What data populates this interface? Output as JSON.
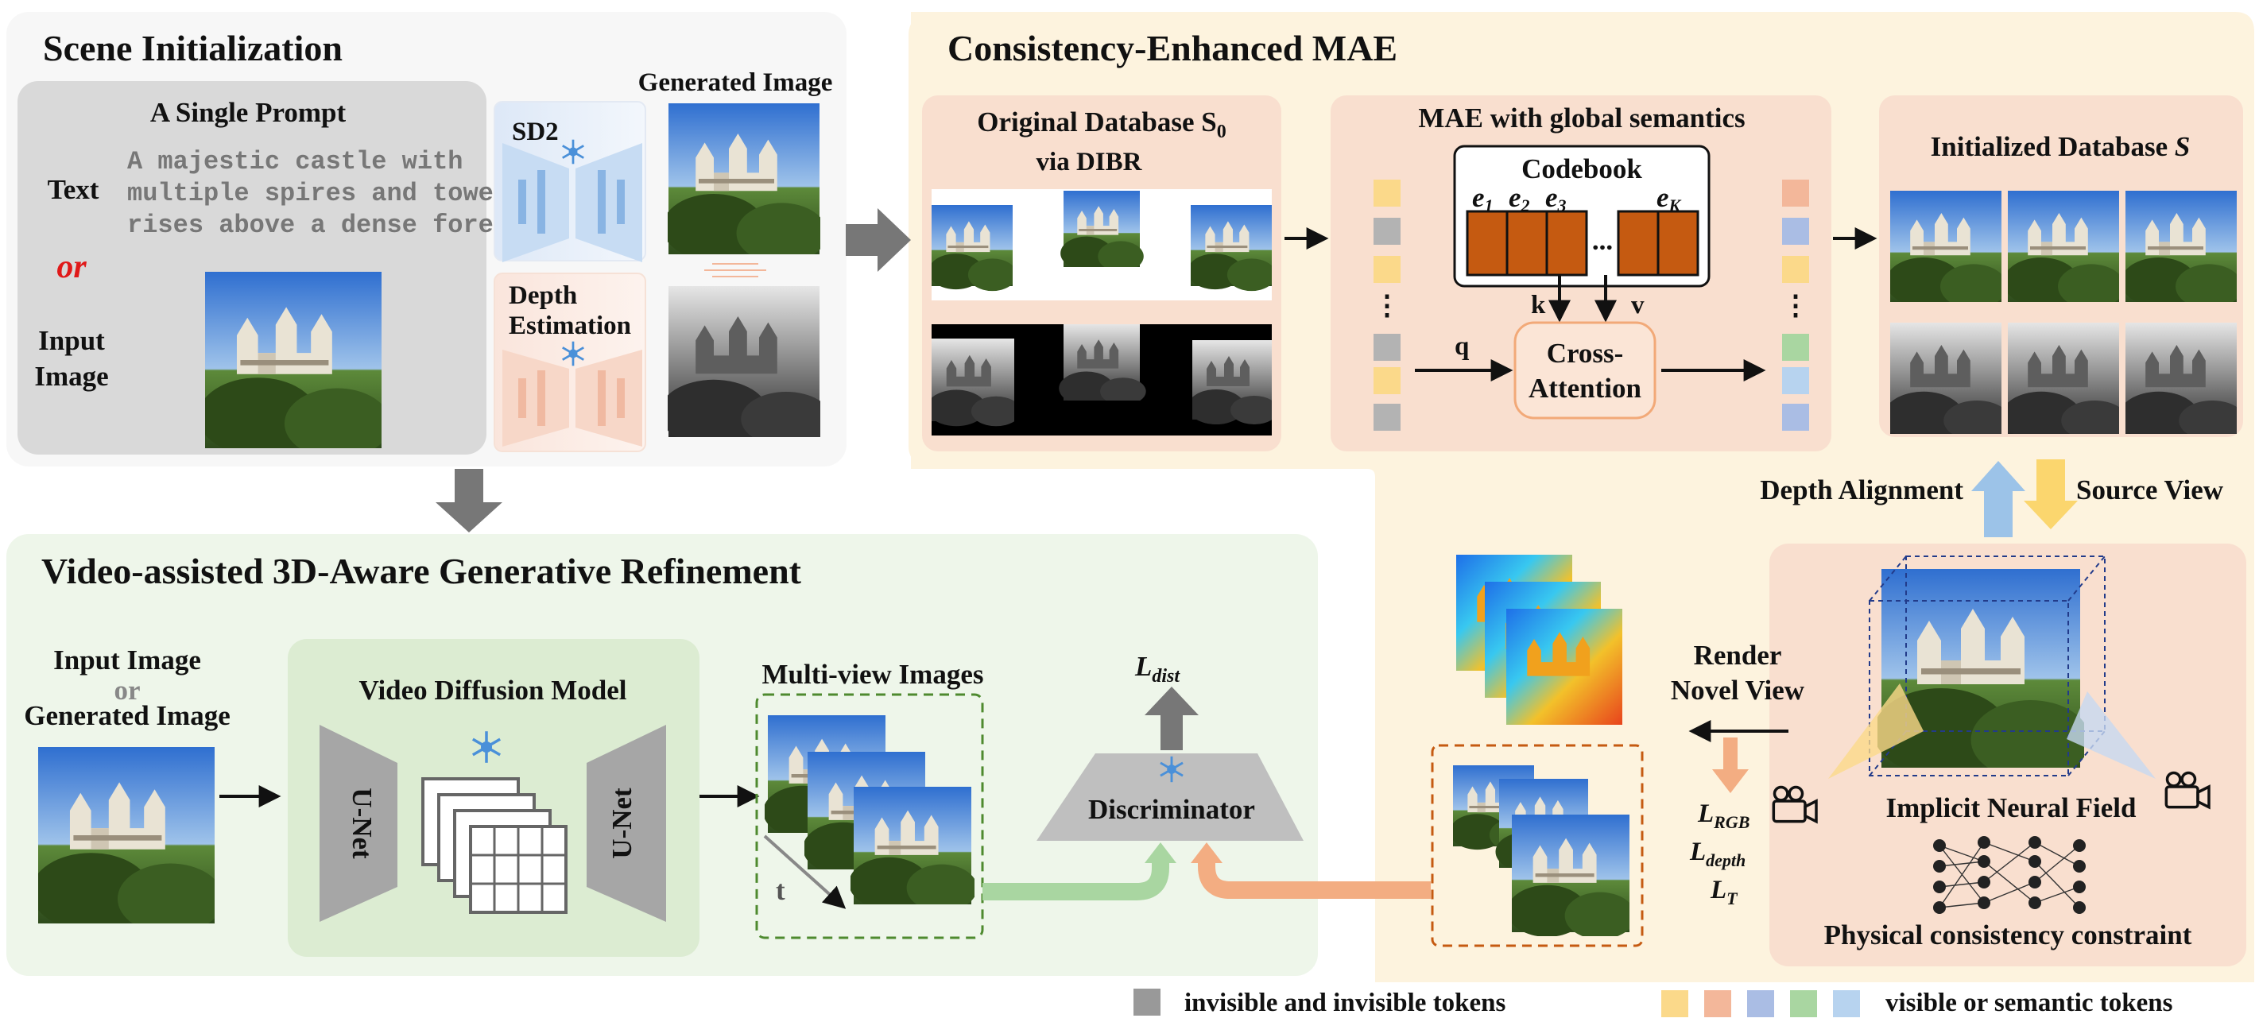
{
  "scene": {
    "title": "Scene Initialization",
    "prompt_title": "A Single Prompt",
    "text_label": "Text",
    "or_label": "or",
    "input_label_1": "Input",
    "input_label_2": "Image",
    "prompt_line_1": "A majestic castle with",
    "prompt_line_2": "multiple spires and towers",
    "prompt_line_3": "rises above a dense forest...",
    "sd2_label": "SD2",
    "depth_label_1": "Depth",
    "depth_label_2": "Estimation",
    "generated_label": "Generated Image"
  },
  "mae": {
    "title": "Consistency-Enhanced MAE",
    "orig_db_title": "Original Database S",
    "orig_db_sub": "0",
    "via_dibr": "via DIBR",
    "mae_title": "MAE with global semantics",
    "codebook": "Codebook",
    "e1": "e",
    "e1_sub": "1",
    "e2": "e",
    "e2_sub": "2",
    "e3": "e",
    "e3_sub": "3",
    "eK": "e",
    "eK_sub": "K",
    "dots": "...",
    "vdots": "⋮",
    "k": "k",
    "v": "v",
    "q": "q",
    "cross_1": "Cross-",
    "cross_2": "Attention",
    "init_db_title": "Initialized Database",
    "init_db_sym": "S",
    "depth_alignment": "Depth Alignment",
    "source_view": "Source View"
  },
  "refine": {
    "title": "Video-assisted 3D-Aware Generative Refinement",
    "input_1": "Input Image",
    "input_or": "or",
    "input_2": "Generated Image",
    "vdm_title": "Video Diffusion Model",
    "unet": "U-Net",
    "multiview_title": "Multi-view Images",
    "t_label": "t",
    "discriminator": "Discriminator",
    "l_dist": "L",
    "l_dist_sub": "dist"
  },
  "nerf": {
    "render_1": "Render",
    "render_2": "Novel View",
    "l_rgb": "L",
    "l_rgb_sub": "RGB",
    "l_depth": "L",
    "l_depth_sub": "depth",
    "l_t": "L",
    "l_t_sub": "T",
    "inf_label": "Implicit Neural Field",
    "phys_label": "Physical consistency constraint"
  },
  "legend": {
    "invisible": "invisible and invisible tokens",
    "visible": "visible or semantic tokens"
  },
  "colors": {
    "token_yellow": "#fbd98a",
    "token_orange": "#f3b79a",
    "token_blue": "#aabde4",
    "token_green": "#a9d6a1",
    "token_lightblue": "#b7d3ef",
    "token_gray": "#b3b3b3",
    "codebook_fill": "#c55a11"
  }
}
